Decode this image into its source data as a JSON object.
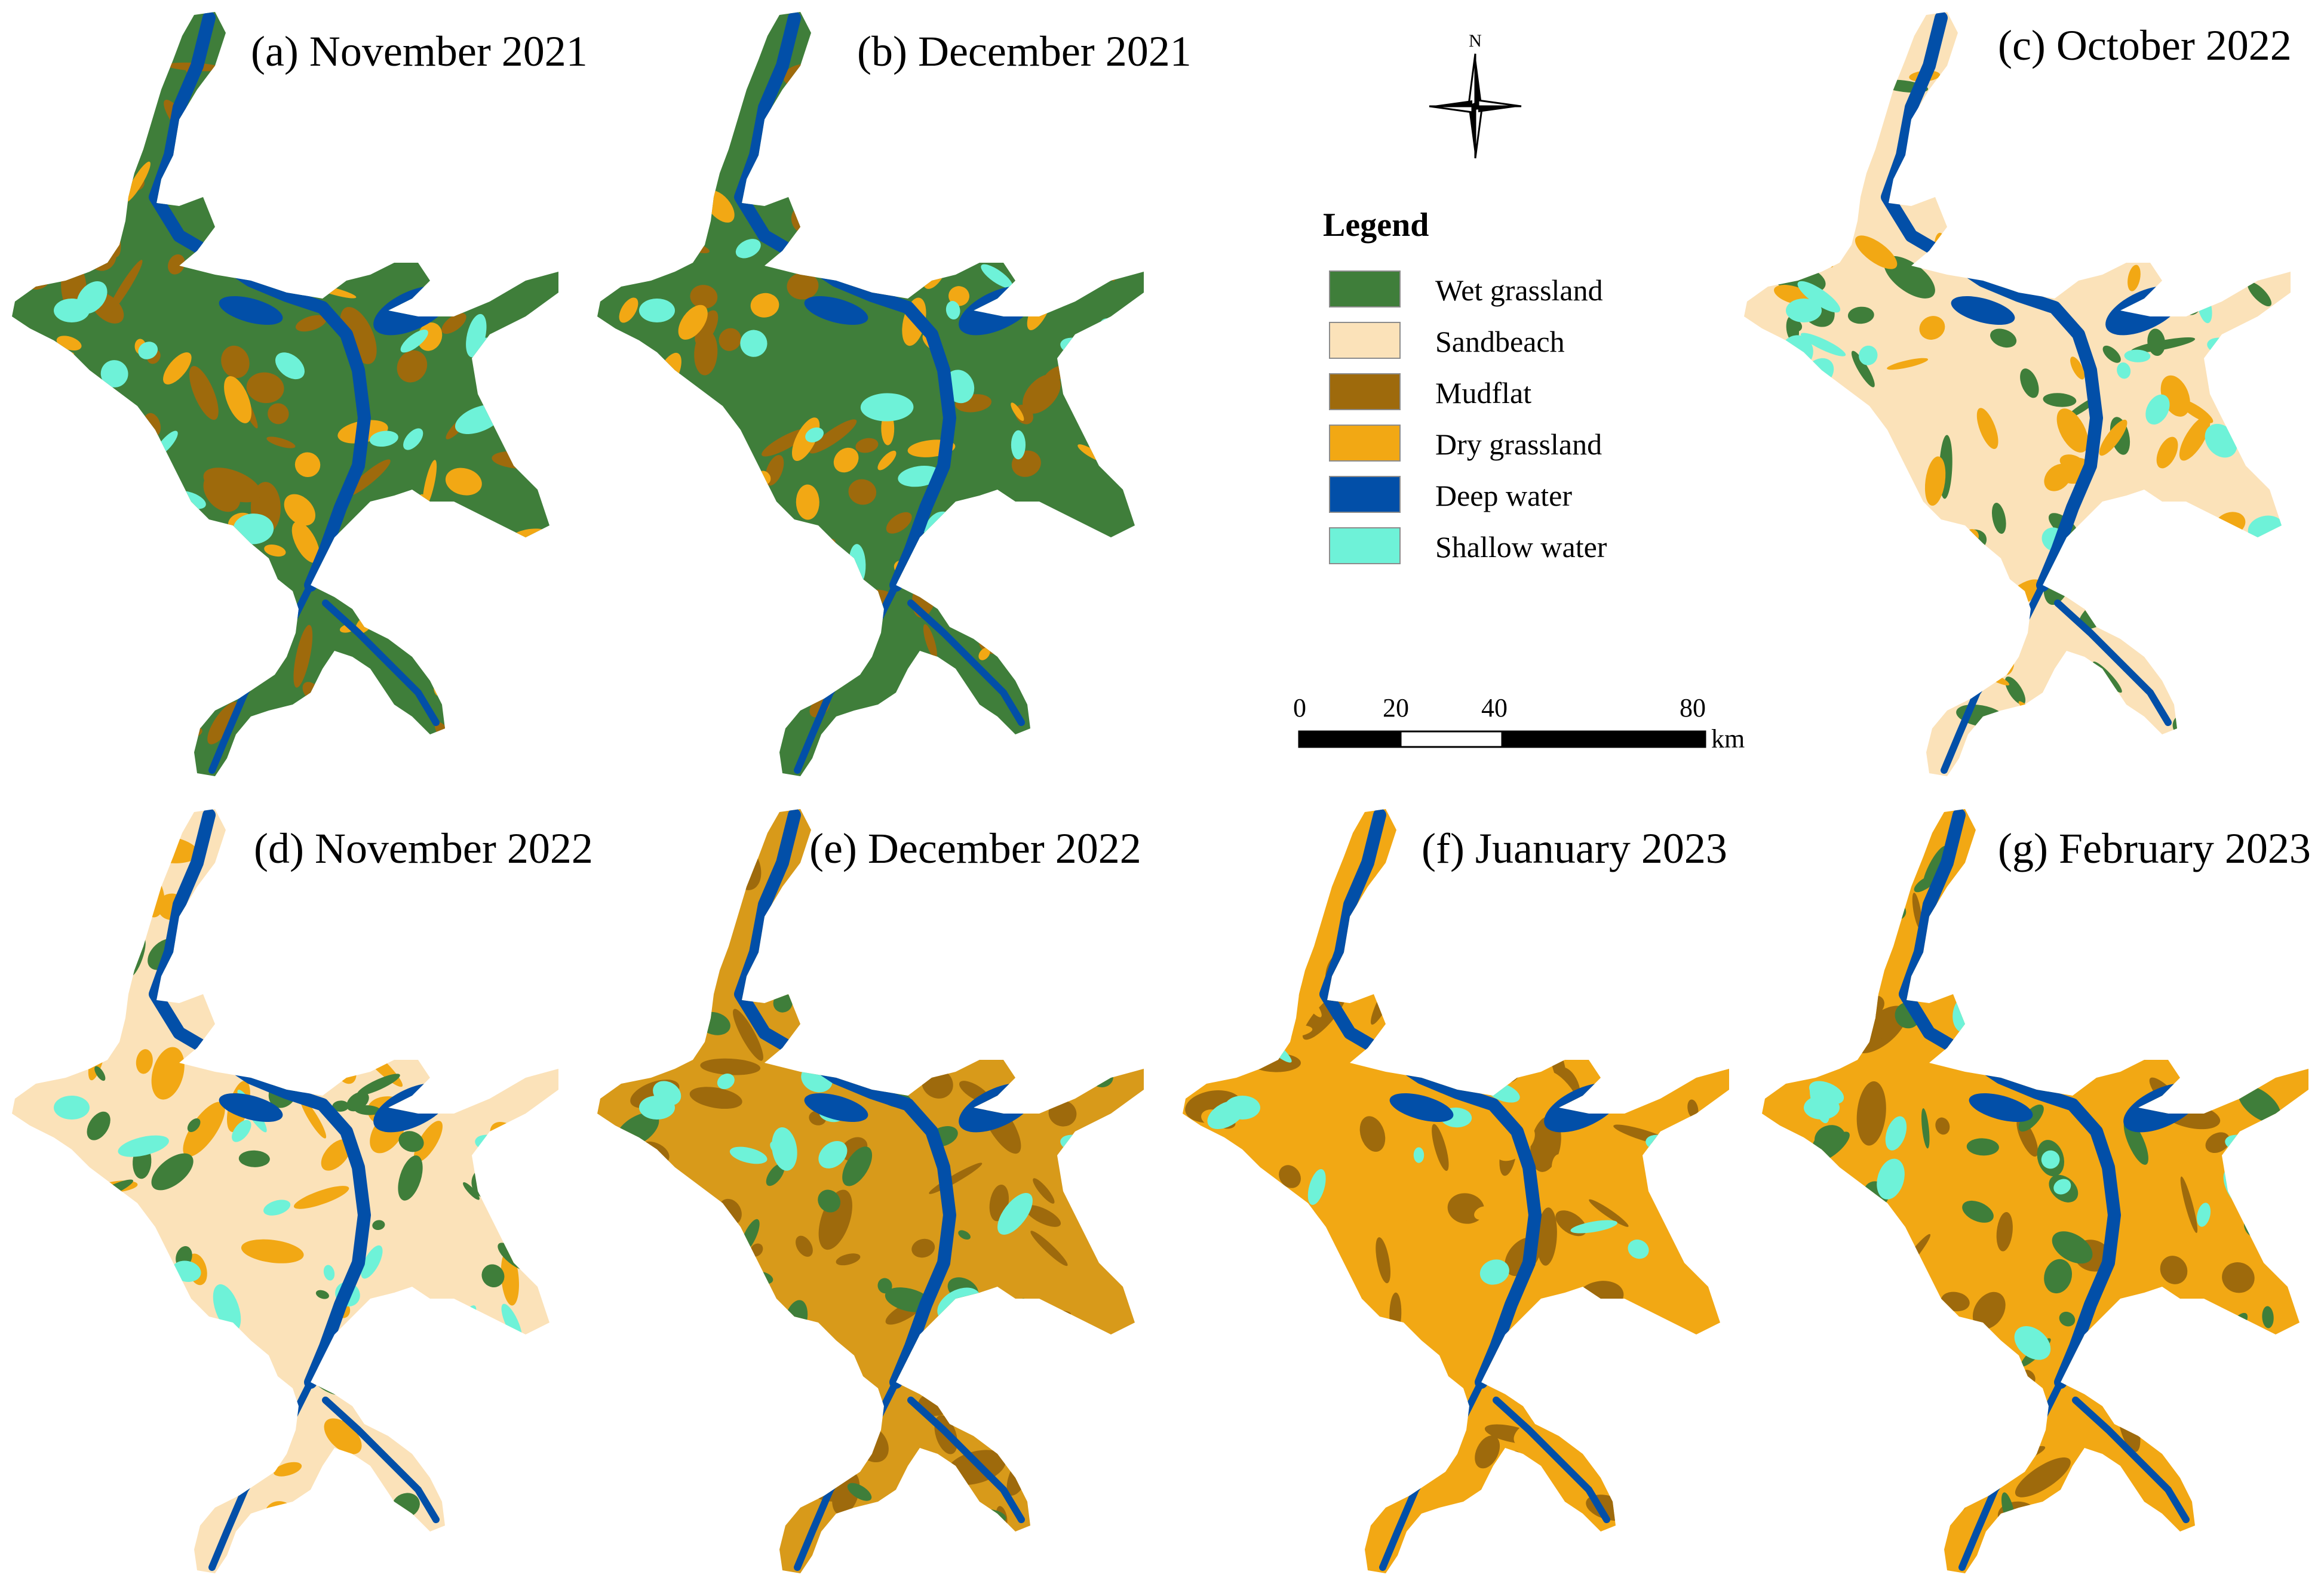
{
  "panels": [
    {
      "label": "(a) November 2021",
      "dominant": "#3f7e3a",
      "secondary": "#9e6a0c",
      "tertiary": "#f2a814",
      "water": "#024fa8",
      "shallow": "#6ef2d8"
    },
    {
      "label": "(b) December 2021",
      "dominant": "#3f7e3a",
      "secondary": "#9e6a0c",
      "tertiary": "#f2a814",
      "water": "#024fa8",
      "shallow": "#6ef2d8"
    },
    {
      "label": "(c) October 2022",
      "dominant": "#fbe2b9",
      "secondary": "#3f7e3a",
      "tertiary": "#f2a814",
      "water": "#024fa8",
      "shallow": "#6ef2d8"
    },
    {
      "label": "(d) November 2022",
      "dominant": "#fbe2b9",
      "secondary": "#f2a814",
      "tertiary": "#3f7e3a",
      "water": "#024fa8",
      "shallow": "#6ef2d8"
    },
    {
      "label": "(e) December 2022",
      "dominant": "#d89a1a",
      "secondary": "#9e6a0c",
      "tertiary": "#3f7e3a",
      "water": "#024fa8",
      "shallow": "#6ef2d8"
    },
    {
      "label": "(f) Juanuary 2023",
      "dominant": "#f2a814",
      "secondary": "#9e6a0c",
      "tertiary": "#f2a814",
      "water": "#024fa8",
      "shallow": "#6ef2d8"
    },
    {
      "label": "(g) February 2023",
      "dominant": "#f2a814",
      "secondary": "#9e6a0c",
      "tertiary": "#3f7e3a",
      "water": "#024fa8",
      "shallow": "#6ef2d8"
    }
  ],
  "north": {
    "label": "N"
  },
  "legend": {
    "title": "Legend",
    "items": [
      {
        "label": "Wet grassland",
        "color": "#3f7e3a"
      },
      {
        "label": "Sandbeach",
        "color": "#fbe2b9"
      },
      {
        "label": "Mudflat",
        "color": "#9e6a0c"
      },
      {
        "label": "Dry grassland",
        "color": "#f2a814"
      },
      {
        "label": "Deep water",
        "color": "#024fa8"
      },
      {
        "label": "Shallow water",
        "color": "#6ef2d8"
      }
    ]
  },
  "scalebar": {
    "ticks": [
      "0",
      "20",
      "40",
      "80"
    ],
    "unit": "km"
  }
}
